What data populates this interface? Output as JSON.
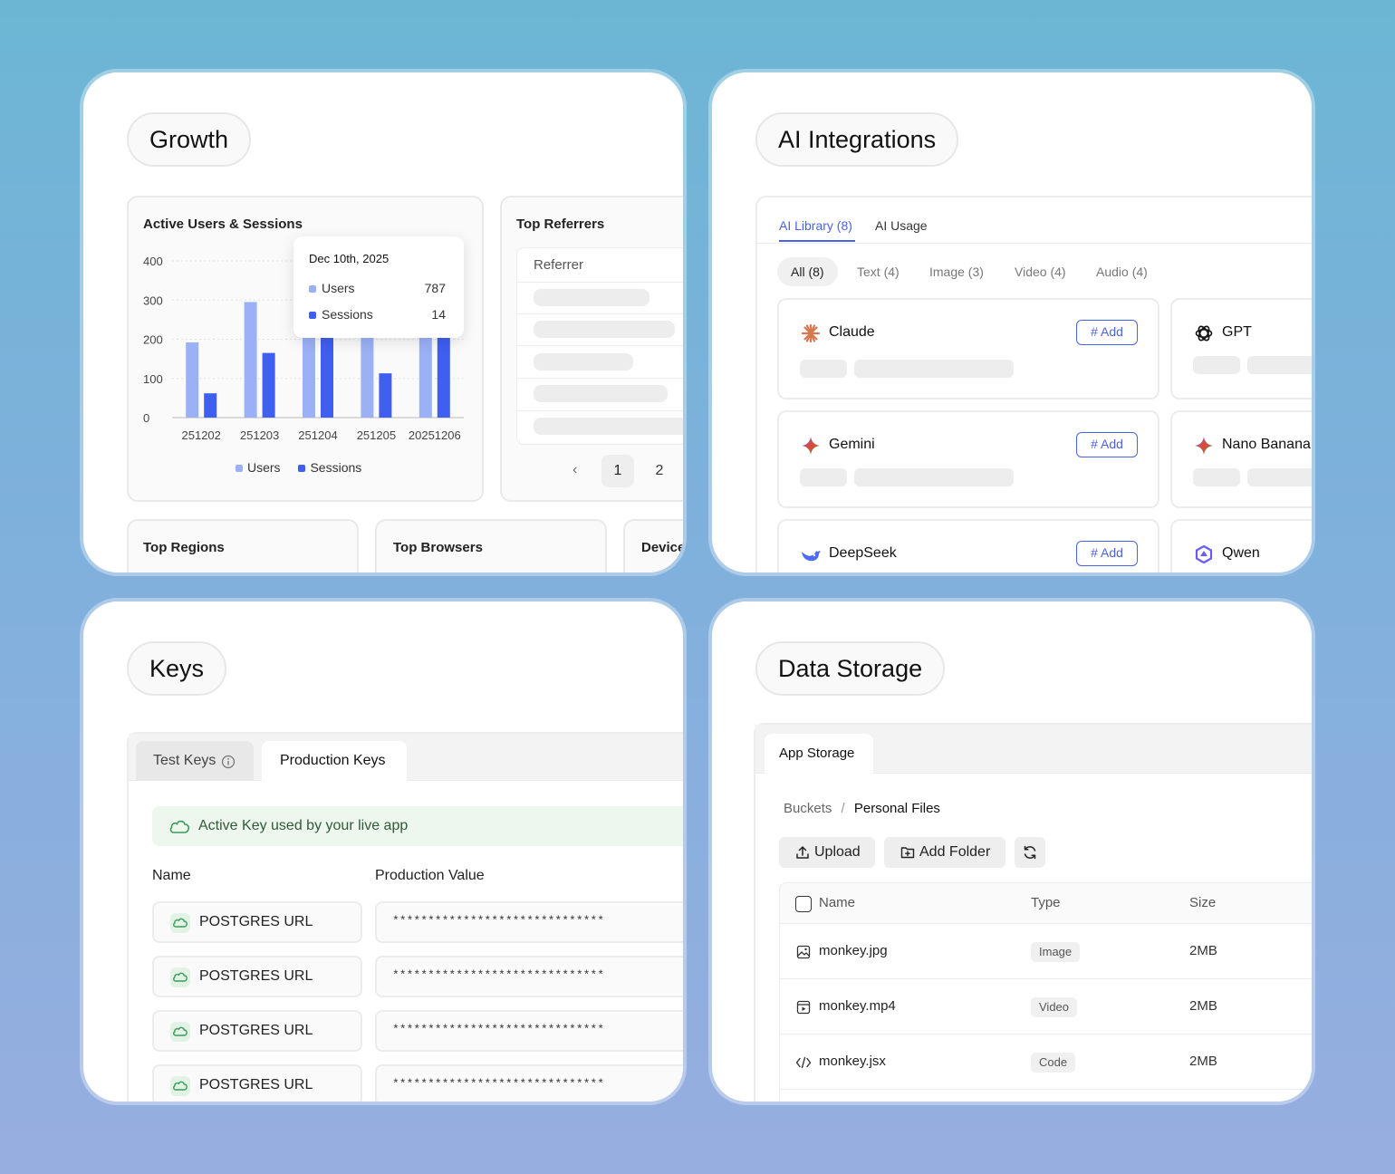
{
  "growth": {
    "title": "Growth",
    "chart_card_title": "Active Users & Sessions",
    "tooltip": {
      "date": "Dec 10th, 2025",
      "users_label": "Users",
      "users_value": "787",
      "sessions_label": "Sessions",
      "sessions_value": "14"
    },
    "referrers": {
      "title": "Top Referrers",
      "header": "Referrer",
      "page1": "1",
      "page2": "2"
    },
    "bottom_cards": [
      "Top Regions",
      "Top Browsers",
      "Device"
    ],
    "colors": {
      "users": "#9ab1f6",
      "sessions": "#3e5ff0"
    }
  },
  "chart_data": {
    "type": "bar",
    "categories": [
      "251202",
      "251203",
      "251204",
      "251205",
      "20251206"
    ],
    "series": [
      {
        "name": "Users",
        "values": [
          192,
          295,
          220,
          220,
          220
        ]
      },
      {
        "name": "Sessions",
        "values": [
          62,
          165,
          220,
          113,
          220
        ]
      }
    ],
    "yticks": [
      "0",
      "100",
      "200",
      "300",
      "400"
    ],
    "ylim": [
      0,
      400
    ],
    "legend": "bottom",
    "grid": true
  },
  "ai": {
    "title": "AI Integrations",
    "tabs": [
      "AI Library (8)",
      "AI Usage"
    ],
    "filters": [
      "All (8)",
      "Text (4)",
      "Image (3)",
      "Video (4)",
      "Audio (4)"
    ],
    "add_label": "Add",
    "models": [
      "Claude",
      "GPT",
      "Gemini",
      "Nano Banana",
      "DeepSeek",
      "Qwen"
    ]
  },
  "keys": {
    "title": "Keys",
    "tab_test": "Test Keys",
    "tab_prod": "Production Keys",
    "banner": "Active Key used by your live app",
    "col_name": "Name",
    "col_value": "Production Value",
    "rows": [
      {
        "name": "POSTGRES URL",
        "value": "******************************"
      },
      {
        "name": "POSTGRES URL",
        "value": "******************************"
      },
      {
        "name": "POSTGRES URL",
        "value": "******************************"
      },
      {
        "name": "POSTGRES URL",
        "value": "******************************"
      }
    ]
  },
  "storage": {
    "title": "Data Storage",
    "tab": "App Storage",
    "breadcrumb_root": "Buckets",
    "breadcrumb_sep": "/",
    "breadcrumb_current": "Personal Files",
    "upload": "Upload",
    "add_folder": "Add Folder",
    "cols": [
      "Name",
      "Type",
      "Size"
    ],
    "files": [
      {
        "name": "monkey.jpg",
        "type": "Image",
        "size": "2MB"
      },
      {
        "name": "monkey.mp4",
        "type": "Video",
        "size": "2MB"
      },
      {
        "name": "monkey.jsx",
        "type": "Code",
        "size": "2MB"
      }
    ]
  }
}
